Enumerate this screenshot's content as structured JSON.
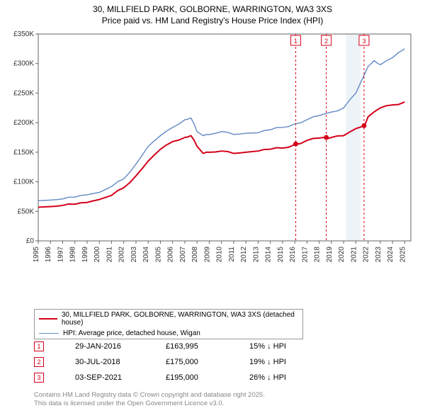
{
  "title_line1": "30, MILLFIELD PARK, GOLBORNE, WARRINGTON, WA3 3XS",
  "title_line2": "Price paid vs. HM Land Registry's House Price Index (HPI)",
  "chart": {
    "type": "line",
    "background_color": "#ffffff",
    "plot_border_color": "#666666",
    "grid_color": "#f0f0f0",
    "shaded_region": {
      "x_start": 2020.2,
      "x_end": 2021.4,
      "color": "#eef3f8"
    },
    "xlim": [
      1995,
      2025.5
    ],
    "ylim": [
      0,
      350000
    ],
    "ytick_step": 50000,
    "ytick_labels": [
      "£0",
      "£50K",
      "£100K",
      "£150K",
      "£200K",
      "£250K",
      "£300K",
      "£350K"
    ],
    "xtick_step": 1,
    "xtick_labels": [
      "1995",
      "1996",
      "1997",
      "1998",
      "1999",
      "2000",
      "2001",
      "2002",
      "2003",
      "2004",
      "2005",
      "2006",
      "2007",
      "2008",
      "2009",
      "2010",
      "2011",
      "2012",
      "2013",
      "2014",
      "2015",
      "2016",
      "2017",
      "2018",
      "2019",
      "2020",
      "2021",
      "2022",
      "2023",
      "2024",
      "2025"
    ],
    "label_fontsize": 10,
    "tick_fontsize": 10,
    "series": [
      {
        "name": "price_paid",
        "label": "30, MILLFIELD PARK, GOLBORNE, WARRINGTON, WA3 3XS (detached house)",
        "color": "#d4001a",
        "line_width": 2,
        "x": [
          1995,
          1996,
          1997,
          1998,
          1999,
          2000,
          2001,
          2002,
          2003,
          2004,
          2005,
          2006,
          2007,
          2007.5,
          2008,
          2008.5,
          2009,
          2010,
          2011,
          2012,
          2013,
          2014,
          2015,
          2016,
          2017,
          2018,
          2018.5,
          2019,
          2020,
          2021,
          2021.7,
          2022,
          2023,
          2024,
          2025
        ],
        "y": [
          57000,
          58000,
          60000,
          62000,
          65000,
          70000,
          77000,
          90000,
          110000,
          135000,
          155000,
          168000,
          175000,
          178000,
          160000,
          148000,
          150000,
          152000,
          148000,
          150000,
          152000,
          155000,
          157000,
          163000,
          170000,
          174000,
          175000,
          175000,
          178000,
          190000,
          195000,
          210000,
          225000,
          230000,
          235000
        ]
      },
      {
        "name": "hpi",
        "label": "HPI: Average price, detached house, Wigan",
        "color": "#6b8fc7",
        "line_width": 1.5,
        "x": [
          1995,
          1996,
          1997,
          1998,
          1999,
          2000,
          2001,
          2002,
          2003,
          2004,
          2005,
          2006,
          2007,
          2007.5,
          2008,
          2008.5,
          2009,
          2010,
          2011,
          2012,
          2013,
          2014,
          2015,
          2016,
          2017,
          2018,
          2019,
          2020,
          2021,
          2022,
          2022.5,
          2023,
          2024,
          2025
        ],
        "y": [
          68000,
          69000,
          71000,
          74000,
          78000,
          82000,
          92000,
          105000,
          130000,
          160000,
          178000,
          192000,
          205000,
          208000,
          185000,
          178000,
          180000,
          185000,
          180000,
          182000,
          183000,
          188000,
          192000,
          198000,
          205000,
          212000,
          218000,
          225000,
          250000,
          295000,
          305000,
          298000,
          310000,
          325000
        ]
      }
    ],
    "markers": [
      {
        "num": "1",
        "x": 2016.08,
        "y": 163995,
        "color": "#d4001a"
      },
      {
        "num": "2",
        "x": 2018.58,
        "y": 175000,
        "color": "#d4001a"
      },
      {
        "num": "3",
        "x": 2021.67,
        "y": 195000,
        "color": "#d4001a"
      }
    ],
    "marker_line_color": "#d4001a",
    "marker_line_dash": "3,3"
  },
  "legend": {
    "items": [
      {
        "color": "#d4001a",
        "width": 2,
        "label": "30, MILLFIELD PARK, GOLBORNE, WARRINGTON, WA3 3XS (detached house)"
      },
      {
        "color": "#6b8fc7",
        "width": 1.5,
        "label": "HPI: Average price, detached house, Wigan"
      }
    ]
  },
  "marker_table": {
    "rows": [
      {
        "num": "1",
        "date": "29-JAN-2016",
        "price": "£163,995",
        "hpi": "15% ↓ HPI",
        "color": "#d4001a"
      },
      {
        "num": "2",
        "date": "30-JUL-2018",
        "price": "£175,000",
        "hpi": "19% ↓ HPI",
        "color": "#d4001a"
      },
      {
        "num": "3",
        "date": "03-SEP-2021",
        "price": "£195,000",
        "hpi": "26% ↓ HPI",
        "color": "#d4001a"
      }
    ]
  },
  "footer_line1": "Contains HM Land Registry data © Crown copyright and database right 2025.",
  "footer_line2": "This data is licensed under the Open Government Licence v3.0."
}
